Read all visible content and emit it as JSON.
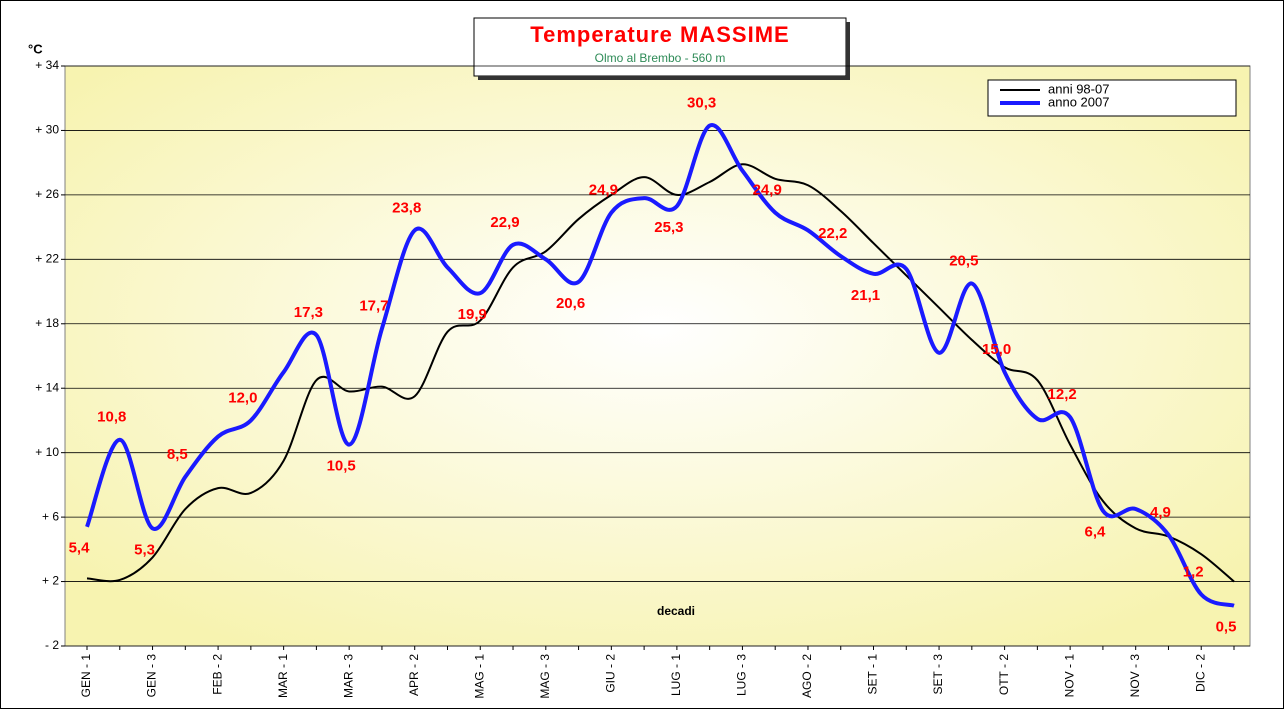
{
  "chart_data": {
    "type": "line",
    "title": "Temperature MASSIME",
    "subtitle": "Olmo al Brembo - 560 m",
    "ylabel": "°C",
    "xlabel": "decadi",
    "categories": [
      "GEN - 1",
      null,
      "GEN - 3",
      null,
      "FEB - 2",
      null,
      "MAR - 1",
      null,
      "MAR - 3",
      null,
      "APR - 2",
      null,
      "MAG - 1",
      null,
      "MAG - 3",
      null,
      "GIU - 2",
      null,
      "LUG - 1",
      null,
      "LUG - 3",
      null,
      "AGO - 2",
      null,
      "SET - 1",
      null,
      "SET - 3",
      null,
      "OTT - 2",
      null,
      "NOV - 1",
      null,
      "NOV - 3",
      null,
      "DIC - 2",
      null
    ],
    "series": [
      {
        "name": "anni 98-07",
        "color": "#000000",
        "values": [
          2.2,
          2.1,
          3.5,
          6.5,
          7.8,
          7.5,
          9.5,
          14.5,
          13.8,
          14.1,
          13.5,
          17.5,
          18.2,
          21.5,
          22.5,
          24.5,
          26.0,
          27.1,
          26.0,
          26.8,
          27.9,
          27.0,
          26.6,
          25.0,
          23.0,
          21.0,
          19.0,
          17.0,
          15.3,
          14.5,
          10.5,
          7.0,
          5.3,
          4.8,
          3.7,
          2.0
        ]
      },
      {
        "name": "anno 2007",
        "color": "#1a1aff",
        "values": [
          5.4,
          10.8,
          5.3,
          8.5,
          11.0,
          12.0,
          15.0,
          17.3,
          10.5,
          17.7,
          23.8,
          21.5,
          19.9,
          22.9,
          22.0,
          20.6,
          24.9,
          25.8,
          25.3,
          30.3,
          27.5,
          24.9,
          23.8,
          22.2,
          21.1,
          21.4,
          16.2,
          20.5,
          15.0,
          12.1,
          12.2,
          6.4,
          6.5,
          4.9,
          1.2,
          0.5
        ],
        "value_labels": [
          "5,4",
          "10,8",
          "5,3",
          "8,5",
          null,
          "12,0",
          null,
          "17,3",
          "10,5",
          "17,7",
          "23,8",
          null,
          "19,9",
          "22,9",
          null,
          "20,6",
          "24,9",
          null,
          "25,3",
          "30,3",
          null,
          "24,9",
          null,
          "22,2",
          "21,1",
          null,
          null,
          "20,5",
          "15,0",
          null,
          "12,2",
          "6,4",
          null,
          "4,9",
          "1,2",
          "0,5"
        ]
      }
    ],
    "ylim": [
      -2,
      34
    ],
    "yticks": [
      {
        "value": -2,
        "label": "- 2"
      },
      {
        "value": 2,
        "label": "+ 2"
      },
      {
        "value": 6,
        "label": "+ 6"
      },
      {
        "value": 10,
        "label": "+ 10"
      },
      {
        "value": 14,
        "label": "+ 14"
      },
      {
        "value": 18,
        "label": "+ 18"
      },
      {
        "value": 22,
        "label": "+ 22"
      },
      {
        "value": 26,
        "label": "+ 26"
      },
      {
        "value": 30,
        "label": "+ 30"
      },
      {
        "value": 34,
        "label": "+ 34"
      }
    ],
    "grid": true,
    "legend": "upper right",
    "value_label_color": "#ff0000"
  }
}
